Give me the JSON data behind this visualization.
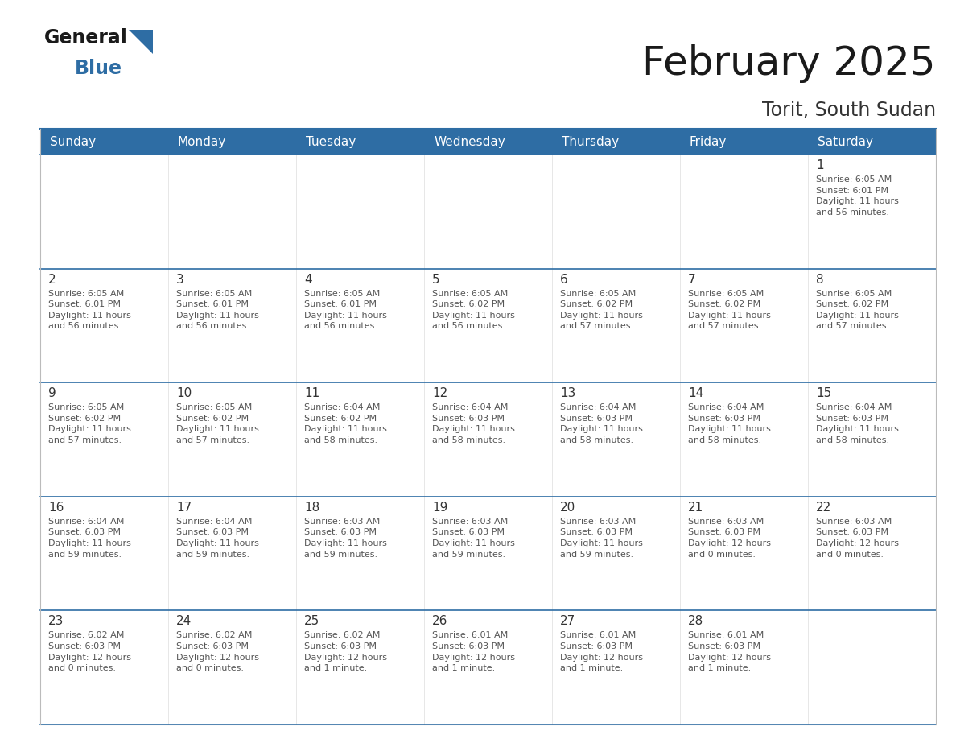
{
  "title": "February 2025",
  "subtitle": "Torit, South Sudan",
  "header_bg": "#2E6DA4",
  "header_text_color": "#FFFFFF",
  "day_headers": [
    "Sunday",
    "Monday",
    "Tuesday",
    "Wednesday",
    "Thursday",
    "Friday",
    "Saturday"
  ],
  "border_color": "#2E6DA4",
  "day_num_color": "#333333",
  "cell_text_color": "#555555",
  "calendar_data": [
    [
      {
        "day": null,
        "info": null
      },
      {
        "day": null,
        "info": null
      },
      {
        "day": null,
        "info": null
      },
      {
        "day": null,
        "info": null
      },
      {
        "day": null,
        "info": null
      },
      {
        "day": null,
        "info": null
      },
      {
        "day": "1",
        "info": "Sunrise: 6:05 AM\nSunset: 6:01 PM\nDaylight: 11 hours\nand 56 minutes."
      }
    ],
    [
      {
        "day": "2",
        "info": "Sunrise: 6:05 AM\nSunset: 6:01 PM\nDaylight: 11 hours\nand 56 minutes."
      },
      {
        "day": "3",
        "info": "Sunrise: 6:05 AM\nSunset: 6:01 PM\nDaylight: 11 hours\nand 56 minutes."
      },
      {
        "day": "4",
        "info": "Sunrise: 6:05 AM\nSunset: 6:01 PM\nDaylight: 11 hours\nand 56 minutes."
      },
      {
        "day": "5",
        "info": "Sunrise: 6:05 AM\nSunset: 6:02 PM\nDaylight: 11 hours\nand 56 minutes."
      },
      {
        "day": "6",
        "info": "Sunrise: 6:05 AM\nSunset: 6:02 PM\nDaylight: 11 hours\nand 57 minutes."
      },
      {
        "day": "7",
        "info": "Sunrise: 6:05 AM\nSunset: 6:02 PM\nDaylight: 11 hours\nand 57 minutes."
      },
      {
        "day": "8",
        "info": "Sunrise: 6:05 AM\nSunset: 6:02 PM\nDaylight: 11 hours\nand 57 minutes."
      }
    ],
    [
      {
        "day": "9",
        "info": "Sunrise: 6:05 AM\nSunset: 6:02 PM\nDaylight: 11 hours\nand 57 minutes."
      },
      {
        "day": "10",
        "info": "Sunrise: 6:05 AM\nSunset: 6:02 PM\nDaylight: 11 hours\nand 57 minutes."
      },
      {
        "day": "11",
        "info": "Sunrise: 6:04 AM\nSunset: 6:02 PM\nDaylight: 11 hours\nand 58 minutes."
      },
      {
        "day": "12",
        "info": "Sunrise: 6:04 AM\nSunset: 6:03 PM\nDaylight: 11 hours\nand 58 minutes."
      },
      {
        "day": "13",
        "info": "Sunrise: 6:04 AM\nSunset: 6:03 PM\nDaylight: 11 hours\nand 58 minutes."
      },
      {
        "day": "14",
        "info": "Sunrise: 6:04 AM\nSunset: 6:03 PM\nDaylight: 11 hours\nand 58 minutes."
      },
      {
        "day": "15",
        "info": "Sunrise: 6:04 AM\nSunset: 6:03 PM\nDaylight: 11 hours\nand 58 minutes."
      }
    ],
    [
      {
        "day": "16",
        "info": "Sunrise: 6:04 AM\nSunset: 6:03 PM\nDaylight: 11 hours\nand 59 minutes."
      },
      {
        "day": "17",
        "info": "Sunrise: 6:04 AM\nSunset: 6:03 PM\nDaylight: 11 hours\nand 59 minutes."
      },
      {
        "day": "18",
        "info": "Sunrise: 6:03 AM\nSunset: 6:03 PM\nDaylight: 11 hours\nand 59 minutes."
      },
      {
        "day": "19",
        "info": "Sunrise: 6:03 AM\nSunset: 6:03 PM\nDaylight: 11 hours\nand 59 minutes."
      },
      {
        "day": "20",
        "info": "Sunrise: 6:03 AM\nSunset: 6:03 PM\nDaylight: 11 hours\nand 59 minutes."
      },
      {
        "day": "21",
        "info": "Sunrise: 6:03 AM\nSunset: 6:03 PM\nDaylight: 12 hours\nand 0 minutes."
      },
      {
        "day": "22",
        "info": "Sunrise: 6:03 AM\nSunset: 6:03 PM\nDaylight: 12 hours\nand 0 minutes."
      }
    ],
    [
      {
        "day": "23",
        "info": "Sunrise: 6:02 AM\nSunset: 6:03 PM\nDaylight: 12 hours\nand 0 minutes."
      },
      {
        "day": "24",
        "info": "Sunrise: 6:02 AM\nSunset: 6:03 PM\nDaylight: 12 hours\nand 0 minutes."
      },
      {
        "day": "25",
        "info": "Sunrise: 6:02 AM\nSunset: 6:03 PM\nDaylight: 12 hours\nand 1 minute."
      },
      {
        "day": "26",
        "info": "Sunrise: 6:01 AM\nSunset: 6:03 PM\nDaylight: 12 hours\nand 1 minute."
      },
      {
        "day": "27",
        "info": "Sunrise: 6:01 AM\nSunset: 6:03 PM\nDaylight: 12 hours\nand 1 minute."
      },
      {
        "day": "28",
        "info": "Sunrise: 6:01 AM\nSunset: 6:03 PM\nDaylight: 12 hours\nand 1 minute."
      },
      {
        "day": null,
        "info": null
      }
    ]
  ],
  "figsize": [
    11.88,
    9.18
  ],
  "dpi": 100
}
